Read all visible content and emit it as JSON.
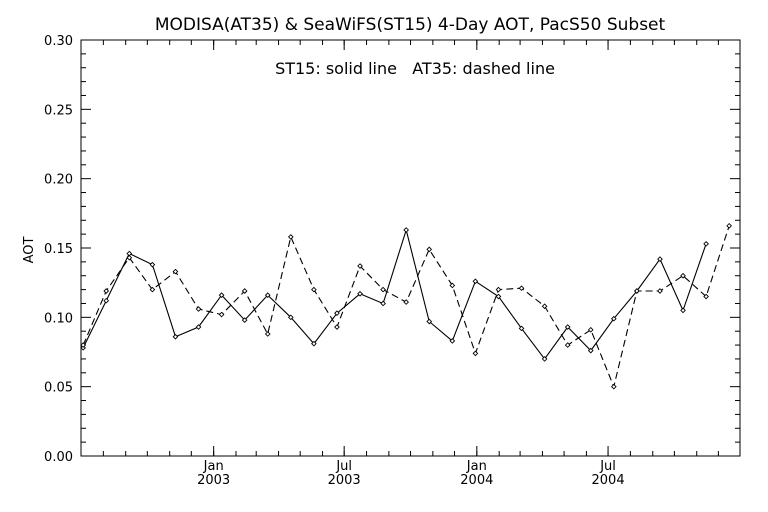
{
  "chart_data": {
    "type": "line",
    "title": "MODISA(AT35) & SeaWiFS(ST15) 4-Day AOT, PacS50 Subset",
    "annotation": "ST15: solid line   AT35: dashed line",
    "ylabel": "AOT",
    "xlabel": "",
    "ylim": [
      0.0,
      0.3
    ],
    "yticks": [
      0.0,
      0.05,
      0.1,
      0.15,
      0.2,
      0.25,
      0.3
    ],
    "ytick_labels": [
      "0.00",
      "0.05",
      "0.10",
      "0.15",
      "0.20",
      "0.25",
      "0.30"
    ],
    "xlim": [
      "2002-07-01",
      "2004-12-31"
    ],
    "xticks": [
      {
        "date": "2003-01-01",
        "month": "Jan",
        "year": "2003"
      },
      {
        "date": "2003-07-01",
        "month": "Jul",
        "year": "2003"
      },
      {
        "date": "2004-01-01",
        "month": "Jan",
        "year": "2004"
      },
      {
        "date": "2004-07-01",
        "month": "Jul",
        "year": "2004"
      }
    ],
    "x": [
      "2002-07-04",
      "2002-08-05",
      "2002-09-06",
      "2002-10-08",
      "2002-11-09",
      "2002-12-11",
      "2003-01-12",
      "2003-02-13",
      "2003-03-17",
      "2003-04-18",
      "2003-05-20",
      "2003-06-21",
      "2003-07-23",
      "2003-08-24",
      "2003-09-25",
      "2003-10-27",
      "2003-11-28",
      "2003-12-30",
      "2004-01-31",
      "2004-03-03",
      "2004-04-04",
      "2004-05-06",
      "2004-06-07",
      "2004-07-09",
      "2004-08-10",
      "2004-09-11",
      "2004-10-13",
      "2004-11-14",
      "2004-12-16",
      "2004-12-31"
    ],
    "series": [
      {
        "name": "ST15",
        "style": "solid",
        "values": [
          0.078,
          0.112,
          0.146,
          0.138,
          0.086,
          0.093,
          0.116,
          0.098,
          0.116,
          0.1,
          0.081,
          0.103,
          0.117,
          0.11,
          0.163,
          0.097,
          0.083,
          0.126,
          0.115,
          0.092,
          0.07,
          0.093,
          0.076,
          0.099,
          0.119,
          0.142,
          0.105,
          0.153,
          null,
          null
        ]
      },
      {
        "name": "AT35",
        "style": "dashed",
        "values": [
          0.08,
          0.119,
          0.143,
          0.12,
          0.133,
          0.106,
          0.102,
          0.119,
          0.088,
          0.158,
          0.12,
          0.093,
          0.137,
          0.12,
          0.111,
          0.149,
          0.123,
          0.074,
          0.12,
          0.121,
          0.108,
          0.08,
          0.091,
          0.05,
          0.119,
          0.119,
          0.13,
          0.115,
          0.166,
          null
        ]
      }
    ],
    "grid": false,
    "legend": "none",
    "colors": {
      "line": "#000000",
      "background": "#ffffff"
    }
  }
}
